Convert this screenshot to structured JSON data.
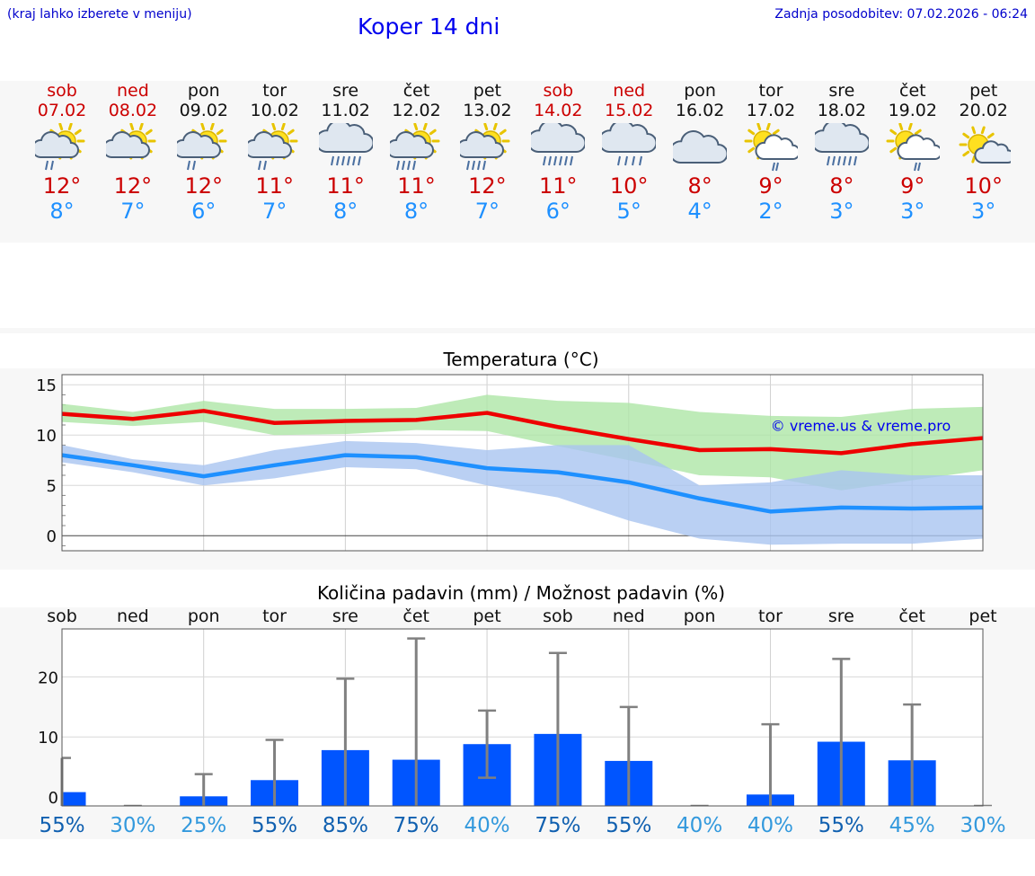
{
  "header": {
    "menu_hint": "(kraj lahko izberete v meniju)",
    "title": "Koper 14 dni",
    "updated": "Zadnja posodobitev: 07.02.2026 - 06:24"
  },
  "forecast": [
    {
      "day": "sob",
      "date": "07.02",
      "weekend": true,
      "icon": "sun-cloud-rain-icon",
      "max": "12°",
      "min": "8°"
    },
    {
      "day": "ned",
      "date": "08.02",
      "weekend": true,
      "icon": "sun-cloud-icon",
      "max": "12°",
      "min": "7°"
    },
    {
      "day": "pon",
      "date": "09.02",
      "weekend": false,
      "icon": "sun-cloud-rain-icon",
      "max": "12°",
      "min": "6°"
    },
    {
      "day": "tor",
      "date": "10.02",
      "weekend": false,
      "icon": "sun-cloud-rain-icon",
      "max": "11°",
      "min": "7°"
    },
    {
      "day": "sre",
      "date": "11.02",
      "weekend": false,
      "icon": "cloud-heavy-rain-icon",
      "max": "11°",
      "min": "8°"
    },
    {
      "day": "čet",
      "date": "12.02",
      "weekend": false,
      "icon": "sun-cloud-heavy-rain-icon",
      "max": "11°",
      "min": "8°"
    },
    {
      "day": "pet",
      "date": "13.02",
      "weekend": false,
      "icon": "sun-cloud-heavy-rain-icon",
      "max": "12°",
      "min": "7°"
    },
    {
      "day": "sob",
      "date": "14.02",
      "weekend": true,
      "icon": "cloud-heavy-rain-icon",
      "max": "11°",
      "min": "6°"
    },
    {
      "day": "ned",
      "date": "15.02",
      "weekend": true,
      "icon": "cloud-rain-icon",
      "max": "10°",
      "min": "5°"
    },
    {
      "day": "pon",
      "date": "16.02",
      "weekend": false,
      "icon": "cloud-icon",
      "max": "8°",
      "min": "4°"
    },
    {
      "day": "tor",
      "date": "17.02",
      "weekend": false,
      "icon": "sun-cloud-light-rain-icon",
      "max": "9°",
      "min": "2°"
    },
    {
      "day": "sre",
      "date": "18.02",
      "weekend": false,
      "icon": "cloud-heavy-rain-icon",
      "max": "8°",
      "min": "3°"
    },
    {
      "day": "čet",
      "date": "19.02",
      "weekend": false,
      "icon": "sun-cloud-light-rain-icon",
      "max": "9°",
      "min": "3°"
    },
    {
      "day": "pet",
      "date": "20.02",
      "weekend": false,
      "icon": "sun-small-cloud-icon",
      "max": "10°",
      "min": "3°"
    }
  ],
  "chart_data": [
    {
      "type": "line",
      "title": "Temperatura (°C)",
      "watermark": "© vreme.us & vreme.pro",
      "x": [
        0,
        1,
        2,
        3,
        4,
        5,
        6,
        7,
        8,
        9,
        10,
        11,
        12,
        13
      ],
      "ylim": [
        -1.5,
        16
      ],
      "yticks": [
        0,
        5,
        10,
        15
      ],
      "series": [
        {
          "name": "max",
          "color": "#ee0000",
          "values": [
            12.1,
            11.6,
            12.4,
            11.2,
            11.4,
            11.5,
            12.2,
            10.8,
            9.6,
            8.5,
            8.6,
            8.2,
            9.1,
            9.7
          ]
        },
        {
          "name": "min",
          "color": "#1e90ff",
          "values": [
            8.0,
            7.0,
            5.9,
            7.0,
            8.0,
            7.8,
            6.7,
            6.3,
            5.3,
            3.7,
            2.4,
            2.8,
            2.7,
            2.8
          ]
        }
      ],
      "bands": [
        {
          "name": "max-range",
          "color": "#aee6a6",
          "upper": [
            13.1,
            12.3,
            13.4,
            12.6,
            12.6,
            12.7,
            14.0,
            13.4,
            13.2,
            12.3,
            11.9,
            11.8,
            12.6,
            12.8
          ],
          "lower": [
            11.3,
            10.9,
            11.3,
            10.0,
            10.1,
            10.5,
            10.4,
            8.9,
            7.5,
            6.0,
            5.8,
            4.5,
            5.5,
            6.5
          ]
        },
        {
          "name": "min-range",
          "color": "#a9c4f0",
          "upper": [
            9.0,
            7.6,
            7.0,
            8.5,
            9.4,
            9.2,
            8.5,
            9.0,
            9.0,
            5.0,
            5.3,
            6.5,
            6.0,
            6.0
          ],
          "lower": [
            7.3,
            6.3,
            5.0,
            5.7,
            6.8,
            6.6,
            5.0,
            3.8,
            1.5,
            -0.3,
            -0.9,
            -0.8,
            -0.8,
            -0.3
          ]
        }
      ]
    },
    {
      "type": "bar",
      "title": "Količina padavin (mm) / Možnost padavin (%)",
      "categories": [
        "sob",
        "ned",
        "pon",
        "tor",
        "sre",
        "čet",
        "pet",
        "sob",
        "ned",
        "pon",
        "tor",
        "sre",
        "čet",
        "pet"
      ],
      "values": [
        0.8,
        0,
        0.1,
        2.8,
        7.8,
        6.2,
        8.8,
        10.5,
        6.0,
        0,
        0.4,
        9.2,
        6.1,
        0
      ],
      "error_high": [
        6.5,
        0,
        3.8,
        9.5,
        19.7,
        26.4,
        14.4,
        24.0,
        15.0,
        0,
        12.1,
        23.0,
        15.4,
        0
      ],
      "error_low": [
        0,
        0,
        0,
        0,
        0,
        0,
        3.2,
        0,
        0,
        0,
        0,
        0,
        0,
        0
      ],
      "chance": [
        "55%",
        "30%",
        "25%",
        "55%",
        "85%",
        "75%",
        "40%",
        "75%",
        "55%",
        "40%",
        "40%",
        "55%",
        "45%",
        "30%"
      ],
      "ylim": [
        -1.5,
        28
      ],
      "yticks": [
        0,
        10,
        20
      ],
      "bar_color": "#0055ff",
      "whisker_color": "#808080"
    }
  ]
}
